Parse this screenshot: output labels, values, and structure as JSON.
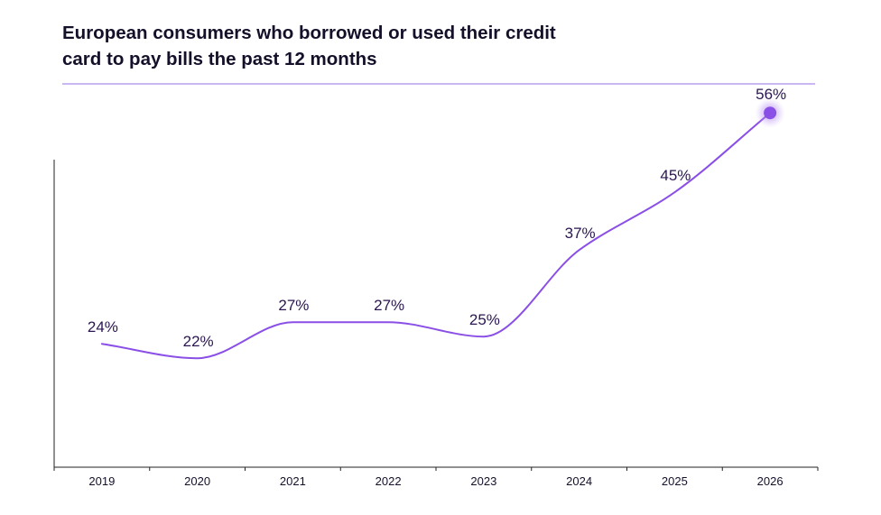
{
  "title": {
    "line1": "European consumers who borrowed or used their credit",
    "line2": "card to pay bills the past 12 months"
  },
  "colors": {
    "line": "#8a4fe6",
    "rule": "#c9b6f2",
    "highlight": "#8a4fe6",
    "text": "#14102a"
  },
  "chart_data": {
    "type": "line",
    "categories": [
      "2019",
      "2020",
      "2021",
      "2022",
      "2023",
      "2024",
      "2025",
      "2026"
    ],
    "series": [
      {
        "values": [
          24,
          22,
          27,
          27,
          25,
          37,
          45,
          56
        ],
        "labels": [
          "24%",
          "22%",
          "27%",
          "27%",
          "25%",
          "37%",
          "45%",
          "56%"
        ]
      }
    ],
    "highlight_last_point": true,
    "xlabel": "",
    "ylabel": "",
    "ylim": [
      0,
      60
    ],
    "grid": false,
    "legend": "none"
  }
}
